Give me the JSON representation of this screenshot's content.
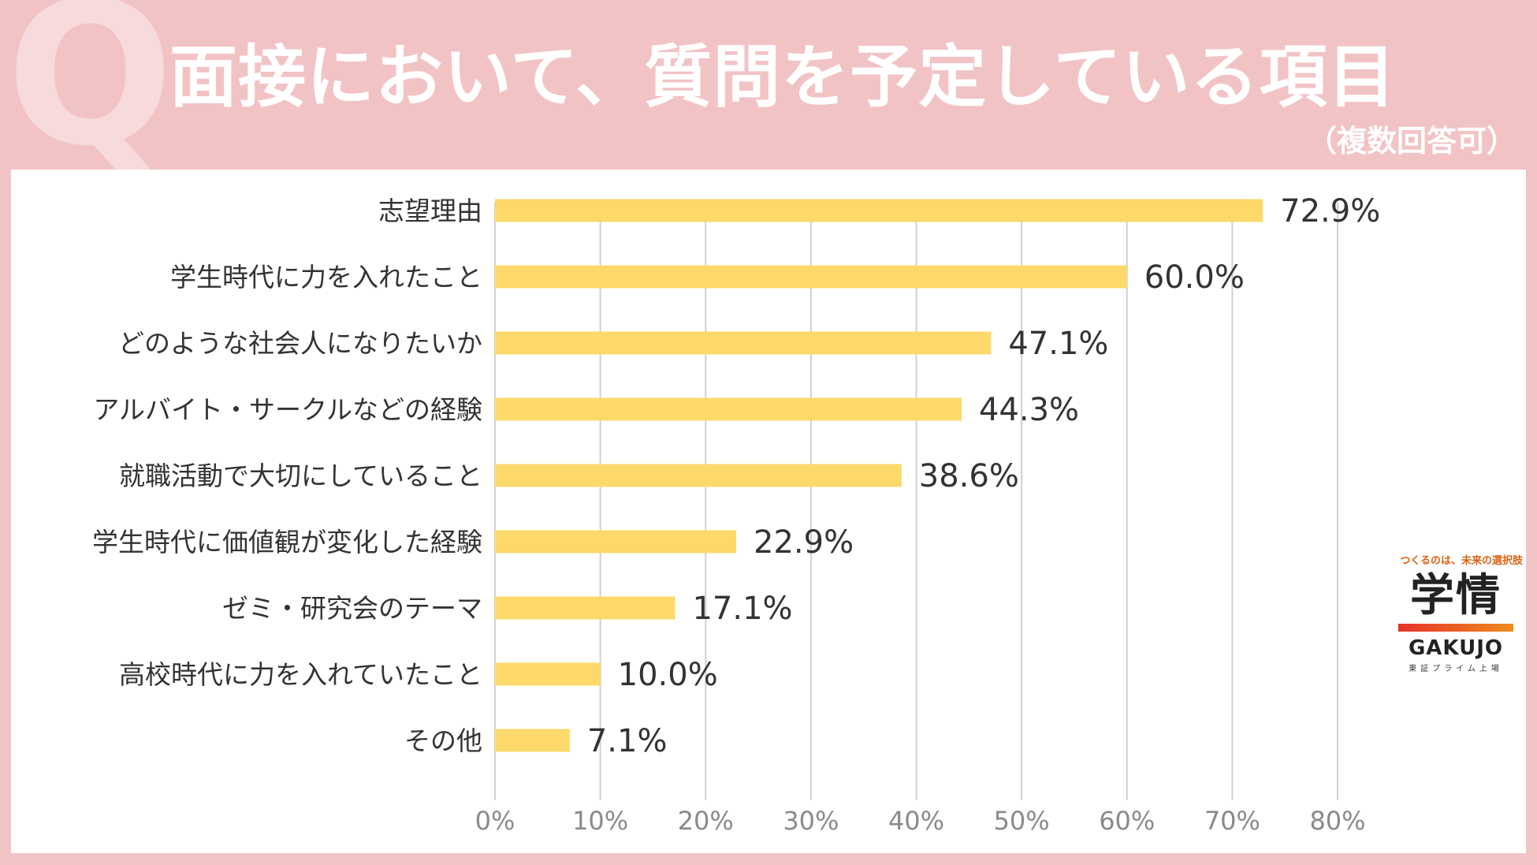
{
  "header": {
    "q_mark": "Q",
    "title": "面接において、質問を予定している項目",
    "subtitle": "（複数回答可）"
  },
  "chart_data": {
    "type": "bar",
    "orientation": "horizontal",
    "categories": [
      "志望理由",
      "学生時代に力を入れたこと",
      "どのような社会人になりたいか",
      "アルバイト・サークルなどの経験",
      "就職活動で大切にしていること",
      "学生時代に価値観が変化した経験",
      "ゼミ・研究会のテーマ",
      "高校時代に力を入れていたこと",
      "その他"
    ],
    "values": [
      72.9,
      60.0,
      47.1,
      44.3,
      38.6,
      22.9,
      17.1,
      10.0,
      7.1
    ],
    "value_labels": [
      "72.9%",
      "60.0%",
      "47.1%",
      "44.3%",
      "38.6%",
      "22.9%",
      "17.1%",
      "10.0%",
      "7.1%"
    ],
    "xlim": [
      0,
      80
    ],
    "xticks": [
      0,
      10,
      20,
      30,
      40,
      50,
      60,
      70,
      80
    ],
    "xtick_labels": [
      "0%",
      "10%",
      "20%",
      "30%",
      "40%",
      "50%",
      "60%",
      "70%",
      "80%"
    ],
    "grid": true,
    "bar_color": "#fcd96a",
    "grid_color": "#d0d0d0"
  },
  "logo": {
    "tagline": "つくるのは、未来の選択肢",
    "kanji": "学情",
    "english": "GAKUJO",
    "sub": "東証プライム上場"
  }
}
